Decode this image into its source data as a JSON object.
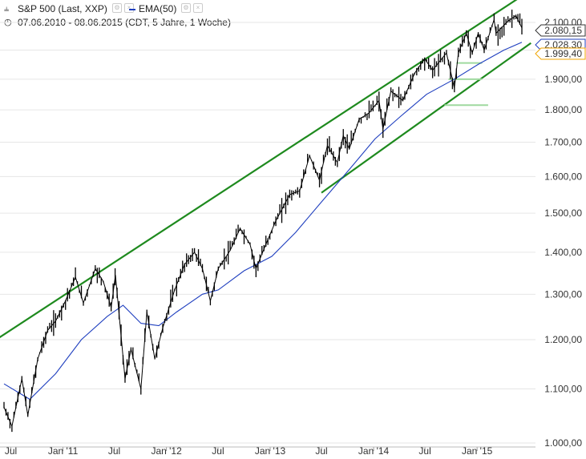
{
  "header": {
    "series_label": "S&P 500 (Last, XXP)",
    "indicator_label": "EMA(50)",
    "range_label": "07.06.2010 - 08.06.2015 (CDT, 5 Jahre, 1 Woche)"
  },
  "price_tags": [
    {
      "label": "2.080,15",
      "value": 2080.15,
      "color": "#333333"
    },
    {
      "label": "2.028,30",
      "value": 2028.3,
      "color": "#1f3fbf"
    },
    {
      "label": "1.999,40",
      "value": 1999.4,
      "color": "#f0a500"
    }
  ],
  "colors": {
    "price": "#000000",
    "ema": "#1f3fbf",
    "channel": "#1e8a1e",
    "support": "#9fd99f"
  },
  "chart_data": {
    "type": "candlestick-line",
    "title": "S&P 500 (Last, XXP)",
    "y_scale": "log",
    "ylim": [
      1000,
      2150
    ],
    "y_ticks": [
      1000,
      1100,
      1200,
      1300,
      1400,
      1500,
      1600,
      1700,
      1800,
      1900,
      2000,
      2100
    ],
    "y_tick_labels": [
      "1.000,00",
      "1.100,00",
      "1.200,00",
      "1.300,00",
      "1.400,00",
      "1.500,00",
      "1.600,00",
      "1.700,00",
      "1.800,00",
      "1.900,00",
      "2.000,00",
      "2.100,00"
    ],
    "x_range": [
      "2010-06-07",
      "2015-06-08"
    ],
    "x_ticks": [
      {
        "label": "Jul",
        "date": "2010-07-01"
      },
      {
        "label": "Jan '11",
        "date": "2011-01-01"
      },
      {
        "label": "Jul",
        "date": "2011-07-01"
      },
      {
        "label": "Jan '12",
        "date": "2012-01-01"
      },
      {
        "label": "Jul",
        "date": "2012-07-01"
      },
      {
        "label": "Jan '13",
        "date": "2013-01-01"
      },
      {
        "label": "Jul",
        "date": "2013-07-01"
      },
      {
        "label": "Jan '14",
        "date": "2014-01-01"
      },
      {
        "label": "Jul",
        "date": "2014-07-01"
      },
      {
        "label": "Jan '15",
        "date": "2015-01-01"
      }
    ],
    "series": [
      {
        "name": "S&P 500",
        "points": [
          [
            "2010-06-07",
            1065
          ],
          [
            "2010-07-05",
            1030
          ],
          [
            "2010-08-09",
            1120
          ],
          [
            "2010-08-30",
            1050
          ],
          [
            "2010-10-04",
            1160
          ],
          [
            "2010-11-08",
            1220
          ],
          [
            "2010-12-06",
            1240
          ],
          [
            "2011-01-10",
            1285
          ],
          [
            "2011-02-14",
            1340
          ],
          [
            "2011-03-14",
            1280
          ],
          [
            "2011-04-25",
            1360
          ],
          [
            "2011-05-23",
            1330
          ],
          [
            "2011-06-20",
            1270
          ],
          [
            "2011-07-05",
            1345
          ],
          [
            "2011-08-08",
            1120
          ],
          [
            "2011-08-29",
            1180
          ],
          [
            "2011-10-03",
            1100
          ],
          [
            "2011-10-24",
            1260
          ],
          [
            "2011-11-21",
            1160
          ],
          [
            "2011-12-19",
            1225
          ],
          [
            "2012-01-30",
            1310
          ],
          [
            "2012-03-05",
            1370
          ],
          [
            "2012-04-09",
            1400
          ],
          [
            "2012-05-07",
            1360
          ],
          [
            "2012-06-04",
            1285
          ],
          [
            "2012-07-02",
            1360
          ],
          [
            "2012-08-13",
            1405
          ],
          [
            "2012-09-17",
            1460
          ],
          [
            "2012-10-22",
            1420
          ],
          [
            "2012-11-12",
            1360
          ],
          [
            "2012-12-17",
            1420
          ],
          [
            "2013-01-21",
            1480
          ],
          [
            "2013-03-11",
            1550
          ],
          [
            "2013-04-15",
            1560
          ],
          [
            "2013-05-20",
            1660
          ],
          [
            "2013-06-24",
            1590
          ],
          [
            "2013-07-22",
            1690
          ],
          [
            "2013-08-26",
            1640
          ],
          [
            "2013-09-16",
            1720
          ],
          [
            "2013-10-07",
            1680
          ],
          [
            "2013-11-11",
            1770
          ],
          [
            "2013-12-16",
            1790
          ],
          [
            "2014-01-20",
            1830
          ],
          [
            "2014-02-03",
            1740
          ],
          [
            "2014-03-03",
            1860
          ],
          [
            "2014-04-14",
            1830
          ],
          [
            "2014-05-26",
            1920
          ],
          [
            "2014-06-30",
            1970
          ],
          [
            "2014-07-28",
            1930
          ],
          [
            "2014-09-15",
            1990
          ],
          [
            "2014-10-13",
            1870
          ],
          [
            "2014-10-27",
            1990
          ],
          [
            "2014-11-24",
            2060
          ],
          [
            "2014-12-15",
            1990
          ],
          [
            "2015-01-05",
            2060
          ],
          [
            "2015-01-26",
            2000
          ],
          [
            "2015-03-02",
            2110
          ],
          [
            "2015-03-09",
            2060
          ],
          [
            "2015-04-20",
            2105
          ],
          [
            "2015-05-18",
            2125
          ],
          [
            "2015-06-08",
            2080
          ]
        ]
      },
      {
        "name": "EMA(50)",
        "points": [
          [
            "2010-06-07",
            1110
          ],
          [
            "2010-09-06",
            1080
          ],
          [
            "2010-12-06",
            1130
          ],
          [
            "2011-03-07",
            1200
          ],
          [
            "2011-06-06",
            1250
          ],
          [
            "2011-08-01",
            1275
          ],
          [
            "2011-10-03",
            1235
          ],
          [
            "2011-12-05",
            1230
          ],
          [
            "2012-02-06",
            1260
          ],
          [
            "2012-05-07",
            1300
          ],
          [
            "2012-07-02",
            1310
          ],
          [
            "2012-10-01",
            1355
          ],
          [
            "2013-01-07",
            1390
          ],
          [
            "2013-04-01",
            1450
          ],
          [
            "2013-07-01",
            1530
          ],
          [
            "2013-10-07",
            1620
          ],
          [
            "2014-01-06",
            1710
          ],
          [
            "2014-04-07",
            1780
          ],
          [
            "2014-07-07",
            1850
          ],
          [
            "2014-10-13",
            1900
          ],
          [
            "2015-01-05",
            1950
          ],
          [
            "2015-04-06",
            2000
          ],
          [
            "2015-06-08",
            2028
          ]
        ]
      }
    ],
    "trendlines": [
      {
        "name": "upper channel",
        "start": [
          "2010-05-10",
          1200
        ],
        "end": [
          "2015-06-08",
          2200
        ]
      },
      {
        "name": "lower channel",
        "start": [
          "2013-07-01",
          1555
        ],
        "end": [
          "2015-07-10",
          2025
        ]
      },
      {
        "name": "support 1",
        "start": [
          "2014-09-08",
          1815
        ],
        "end": [
          "2015-02-09",
          1815
        ]
      },
      {
        "name": "support 2",
        "start": [
          "2014-09-22",
          1900
        ],
        "end": [
          "2015-01-19",
          1900
        ]
      },
      {
        "name": "support 3",
        "start": [
          "2014-10-20",
          1955
        ],
        "end": [
          "2015-01-19",
          1955
        ]
      }
    ]
  }
}
